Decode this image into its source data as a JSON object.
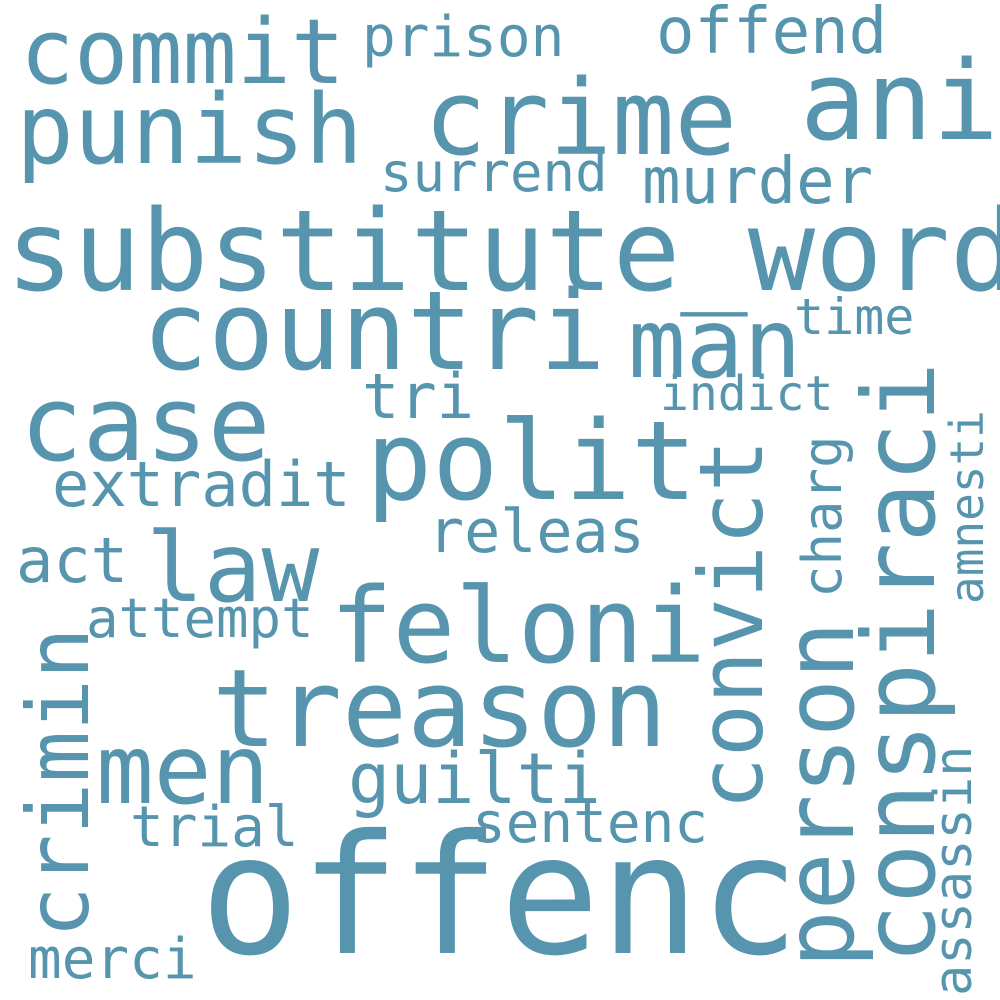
{
  "cloud": {
    "color": "#5695ad",
    "words": {
      "commit": "commit",
      "prison": "prison",
      "offend": "offend",
      "punish": "punish",
      "crime": "crime",
      "ani": "ani",
      "surrend": "surrend",
      "murder": "murder",
      "substitute_word": "substitute_word",
      "countri": "countri",
      "man": "man",
      "time": "time",
      "case": "case",
      "tri": "tri",
      "indict": "indict",
      "polit": "polit",
      "extradit": "extradit",
      "releas": "releas",
      "act": "act",
      "law": "law",
      "attempt": "attempt",
      "feloni": "feloni",
      "treason": "treason",
      "men": "men",
      "guilti": "guilti",
      "trial": "trial",
      "sentenc": "sentenc",
      "offenc": "offenc",
      "merci": "merci",
      "crimin": "crimin",
      "convict": "convict",
      "person": "person",
      "conspiraci": "conspiraci",
      "charg": "charg",
      "amnesti": "amnesti",
      "assassin": "assassin"
    }
  }
}
